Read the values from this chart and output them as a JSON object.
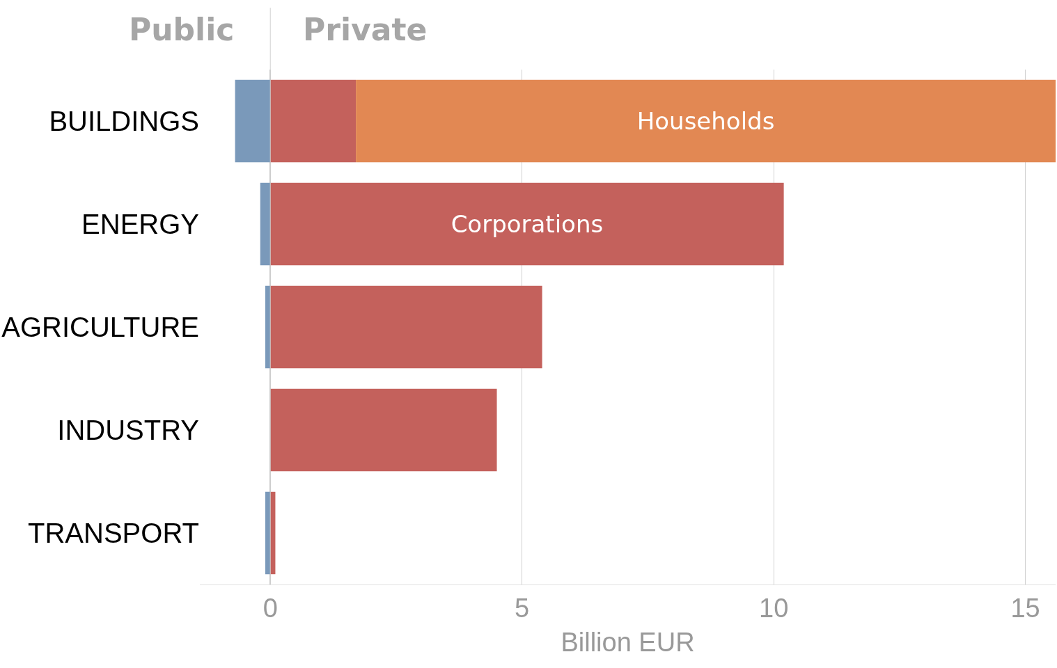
{
  "chart_data": {
    "type": "bar",
    "orientation": "horizontal",
    "stacked": true,
    "categories": [
      "BUILDINGS",
      "ENERGY",
      "AGRICULTURE",
      "INDUSTRY",
      "TRANSPORT"
    ],
    "series": [
      {
        "color": "#7a99ba",
        "values": [
          -0.7,
          -0.2,
          -0.1,
          null,
          -0.1
        ]
      },
      {
        "name": "Corporations",
        "color": "#c4615c",
        "values": [
          1.7,
          10.2,
          5.4,
          4.5,
          0.1
        ]
      },
      {
        "name": "Households",
        "color": "#e28853",
        "values": [
          13.9,
          null,
          null,
          null,
          null
        ]
      }
    ],
    "xlabel": "Billion EUR",
    "xlim": [
      -1.4,
      15.6
    ],
    "xticks": [
      0,
      5,
      10,
      15
    ],
    "annotations": [
      "Public",
      "Private"
    ],
    "grid": "x",
    "legend": false
  }
}
